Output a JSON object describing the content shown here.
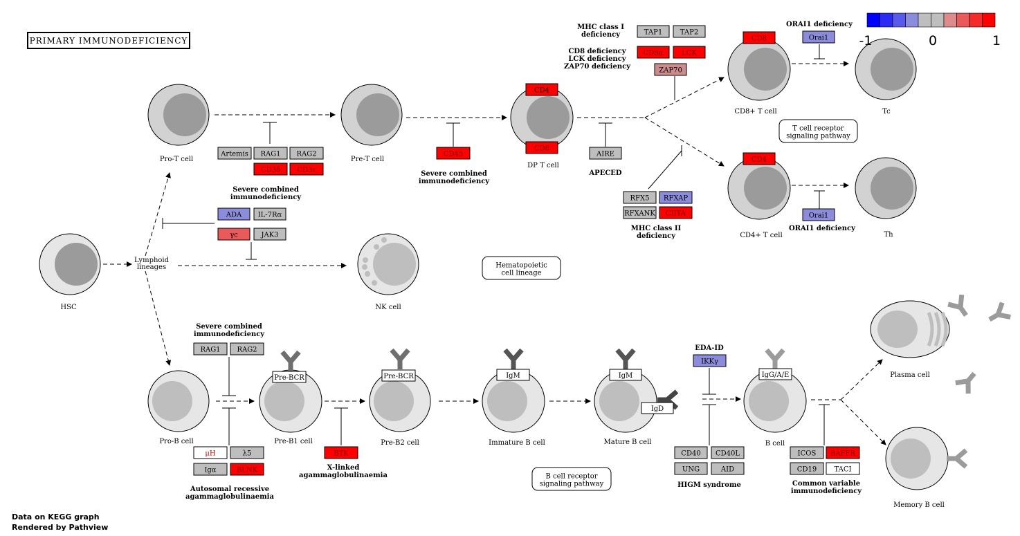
{
  "title": "PRIMARY IMMUNODEFICIENCY",
  "footer": {
    "line1": "Data on KEGG graph",
    "line2": "Rendered by Pathview"
  },
  "colorbar": {
    "labels": [
      "-1",
      "0",
      "1"
    ],
    "colors": [
      "#0000ff",
      "#2b2bf5",
      "#5a5aea",
      "#8c8cdc",
      "#bebebe",
      "#bebebe",
      "#dc8c8c",
      "#ea5a5a",
      "#f52b2b",
      "#ff0000"
    ]
  },
  "cells": {
    "pro_t": "Pro-T cell",
    "pre_t": "Pre-T cell",
    "dp_t": "DP T cell",
    "cd8_t": "CD8+ T cell",
    "tc": "Tc",
    "cd4_t": "CD4+ T cell",
    "th": "Th",
    "hsc": "HSC",
    "nk": "NK cell",
    "lymphoid": "Lymphoid\nlineages",
    "pro_b": "Pro-B cell",
    "pre_b1": "Pre-B1 cell",
    "pre_b2": "Pre-B2 cell",
    "immature_b": "Immature B cell",
    "mature_b": "Mature B cell",
    "b": "B cell",
    "plasma": "Plasma cell",
    "memory_b": "Memory B cell"
  },
  "receptors": {
    "pre_bcr_1": "Pre-BCR",
    "pre_bcr_2": "Pre-BCR",
    "igm_1": "IgM",
    "igm_2": "IgM",
    "igd": "IgD",
    "iggae": "IgG/A/E"
  },
  "genes": {
    "artemis": "Artemis",
    "rag1_t": "RAG1",
    "rag2_t": "RAG2",
    "cd3d": "CD3δ",
    "cd3e": "CD3ε",
    "ada": "ADA",
    "il7ra": "IL-7Rα",
    "gc": "γc",
    "jak3": "JAK3",
    "cd45": "CD45",
    "cd4_dp": "CD4",
    "cd8_dp": "CD8",
    "aire": "AIRE",
    "tap1": "TAP1",
    "tap2": "TAP2",
    "cd8a": "CD8α",
    "lck": "LCK",
    "zap70": "ZAP70",
    "cd8_top": "CD8",
    "orai1_top": "Orai1",
    "cd4_mid": "CD4",
    "orai1_mid": "Orai1",
    "rfx5": "RFX5",
    "rfxap": "RFXAP",
    "rfxank": "RFXANK",
    "ciita": "CIITA",
    "rag1_b": "RAG1",
    "rag2_b": "RAG2",
    "uh": "μH",
    "l5": "λ5",
    "iga": "Igα",
    "blnk": "BLNK",
    "btk": "BTK",
    "ikky": "IKKγ",
    "cd40": "CD40",
    "cd40l": "CD40L",
    "ung": "UNG",
    "aid": "AID",
    "icos": "ICOS",
    "baffr": "BAFFR",
    "cd19": "CD19",
    "taci": "TACI"
  },
  "diseases": {
    "scid_top": "Severe combined\nimmunodeficiency",
    "scid_mid": "Severe combined\nimmunodeficiency",
    "apeced": "APECED",
    "mhc1": "MHC class I\ndeficiency",
    "cd8_lck_zap": "CD8 deficiency\nLCK deficiency\nZAP70 deficiency",
    "orai1_top": "ORAI1 deficiency",
    "orai1_mid": "ORAI1 deficiency",
    "mhc2": "MHC class II\ndeficiency",
    "scid_b": "Severe combined\nimmunodeficiency",
    "ar_agamma": "Autosomal recessive\nagammaglobulinaemia",
    "x_agamma": "X-linked\nagammaglobulinaemia",
    "eda_id": "EDA-ID",
    "higm": "HIGM syndrome",
    "cvid": "Common variable\nimmunodeficiency"
  },
  "pathways": {
    "tcr": "T cell receptor\nsignaling pathway",
    "hema": "Hematopoietic\ncell lineage",
    "bcr": "B cell receptor\nsignaling pathway"
  }
}
